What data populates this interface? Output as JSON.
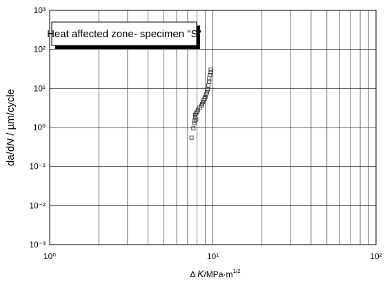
{
  "chart_data": {
    "type": "scatter",
    "annotation": "Heat affected zone- specimen \"S\"",
    "x_label": [
      "Δ ",
      "K",
      "/MPa·m",
      "1/2"
    ],
    "y_label": [
      "da/d",
      "N",
      " / µm/cycle"
    ],
    "xlog": true,
    "ylog": true,
    "grid": true,
    "xlim": [
      1,
      100
    ],
    "ylim": [
      0.001,
      1000
    ],
    "xticks": [
      {
        "value": 1,
        "label": "10⁰"
      },
      {
        "value": 10,
        "label": "10¹"
      },
      {
        "value": 100,
        "label": "10²"
      }
    ],
    "xminor_ticks": [
      2,
      3,
      4,
      5,
      6,
      7,
      8,
      9,
      20,
      30,
      40,
      50,
      60,
      70,
      80,
      90
    ],
    "yticks": [
      {
        "value": 0.001,
        "label": "10⁻³"
      },
      {
        "value": 0.01,
        "label": "10⁻²"
      },
      {
        "value": 0.1,
        "label": "10⁻¹"
      },
      {
        "value": 1,
        "label": "10⁰"
      },
      {
        "value": 10,
        "label": "10¹"
      },
      {
        "value": 100,
        "label": "10²"
      },
      {
        "value": 1000,
        "label": "10³"
      }
    ],
    "series": [
      {
        "color": "#333333",
        "x": [
          7.4,
          7.6,
          7.7,
          7.7,
          7.8,
          7.8,
          7.9,
          8.0,
          7.9,
          8.1,
          8.3,
          8.5,
          8.6,
          8.7,
          8.8,
          8.9,
          9.0,
          9.1,
          9.2,
          9.3,
          9.4,
          9.5,
          9.5,
          9.6,
          9.7,
          9.7
        ],
        "values": [
          0.55,
          0.95,
          1.3,
          1.5,
          1.8,
          2.1,
          2.3,
          2.5,
          1.6,
          2.8,
          3.2,
          3.6,
          4.0,
          4.5,
          5.0,
          5.5,
          6.0,
          7.0,
          8.0,
          9.5,
          12,
          15,
          18,
          22,
          26,
          30
        ]
      }
    ]
  }
}
